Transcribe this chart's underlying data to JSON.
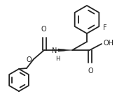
{
  "background_color": "#ffffff",
  "line_color": "#222222",
  "line_width": 1.3,
  "figsize": [
    1.77,
    1.35
  ],
  "dpi": 100,
  "font_size": 7,
  "atoms": {
    "F": "F",
    "O": "O",
    "N": "N",
    "H": "H",
    "OH": "OH"
  }
}
